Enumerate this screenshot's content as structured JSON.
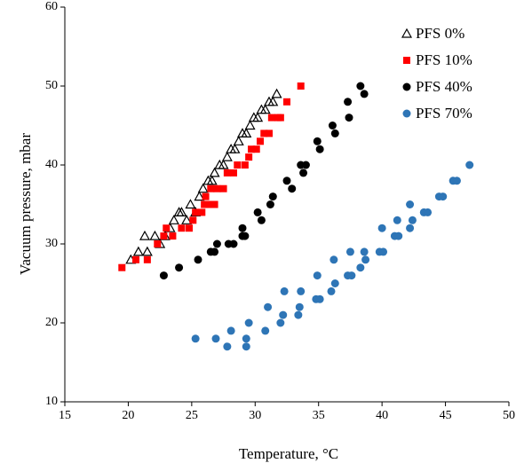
{
  "chart_data": {
    "type": "scatter",
    "x_label": "Temperature, °C",
    "y_label": "Vacuum pressure, mbar",
    "xlim": [
      15,
      50
    ],
    "xticks": [
      15,
      20,
      25,
      30,
      35,
      40,
      45,
      50
    ],
    "ylim": [
      10,
      60
    ],
    "yticks": [
      10,
      20,
      30,
      40,
      50,
      60
    ],
    "grid": false,
    "legend": "upper right",
    "series": [
      {
        "name": "PFS 0%",
        "color": "#000000",
        "marker": "triangle-open",
        "x": [
          20.2,
          20.8,
          21.3,
          21.5,
          22.1,
          22.5,
          22.9,
          23.3,
          23.6,
          24.0,
          24.2,
          24.6,
          24.9,
          25.3,
          25.6,
          25.9,
          26.3,
          26.6,
          26.8,
          27.2,
          27.5,
          27.8,
          28.1,
          28.4,
          28.7,
          29.0,
          29.3,
          29.6,
          29.9,
          30.2,
          30.5,
          30.8,
          31.1,
          31.4,
          31.7
        ],
        "values": [
          28,
          29,
          31,
          29,
          31,
          30,
          31,
          32,
          33,
          34,
          34,
          33,
          35,
          34,
          36,
          37,
          38,
          38,
          39,
          40,
          40,
          41,
          42,
          42,
          43,
          44,
          44,
          45,
          46,
          46,
          47,
          47,
          48,
          48,
          49
        ]
      },
      {
        "name": "PFS 10%",
        "color": "#ff0000",
        "marker": "square",
        "x": [
          19.5,
          20.6,
          21.5,
          22.3,
          22.8,
          23.0,
          23.5,
          24.2,
          24.8,
          25.1,
          25.3,
          25.8,
          26.0,
          26.3,
          26.8,
          26.1,
          26.5,
          27.0,
          27.5,
          27.8,
          28.3,
          28.6,
          29.2,
          29.5,
          29.7,
          30.1,
          30.4,
          30.7,
          31.1,
          31.3,
          31.8,
          32.0,
          32.5,
          33.6
        ],
        "values": [
          27,
          28,
          28,
          30,
          31,
          32,
          31,
          32,
          32,
          33,
          34,
          34,
          35,
          35,
          35,
          36,
          37,
          37,
          37,
          39,
          39,
          40,
          40,
          41,
          42,
          42,
          43,
          44,
          44,
          46,
          46,
          46,
          48,
          50
        ]
      },
      {
        "name": "PFS 40%",
        "color": "#000000",
        "marker": "circle",
        "x": [
          22.8,
          24.0,
          25.5,
          26.5,
          26.8,
          27.0,
          27.9,
          28.3,
          29.0,
          29.2,
          29.0,
          30.2,
          30.5,
          31.2,
          31.4,
          32.5,
          32.9,
          33.6,
          34.0,
          33.8,
          34.9,
          35.1,
          36.1,
          36.3,
          37.3,
          37.4,
          38.3,
          38.6
        ],
        "values": [
          26,
          27,
          28,
          29,
          29,
          30,
          30,
          30,
          31,
          31,
          32,
          34,
          33,
          35,
          36,
          38,
          37,
          40,
          40,
          39,
          43,
          42,
          45,
          44,
          48,
          46,
          50,
          49
        ]
      },
      {
        "name": "PFS 70%",
        "color": "#2e75b6",
        "marker": "circle",
        "x": [
          25.3,
          26.9,
          27.8,
          28.1,
          29.3,
          29.3,
          29.5,
          30.8,
          31.0,
          32.0,
          32.2,
          32.3,
          33.4,
          33.5,
          33.6,
          34.8,
          34.9,
          35.1,
          36.0,
          36.2,
          36.3,
          37.3,
          37.5,
          37.6,
          38.3,
          38.6,
          38.7,
          39.8,
          40.0,
          40.1,
          41.0,
          41.2,
          41.3,
          42.2,
          42.2,
          42.4,
          43.3,
          43.6,
          44.5,
          44.8,
          45.6,
          45.9,
          46.9
        ],
        "values": [
          18,
          18,
          17,
          19,
          17,
          18,
          20,
          19,
          22,
          20,
          21,
          24,
          21,
          22,
          24,
          23,
          26,
          23,
          24,
          28,
          25,
          26,
          29,
          26,
          27,
          29,
          28,
          29,
          32,
          29,
          31,
          33,
          31,
          32,
          35,
          33,
          34,
          34,
          36,
          36,
          38,
          38,
          40
        ]
      }
    ]
  }
}
